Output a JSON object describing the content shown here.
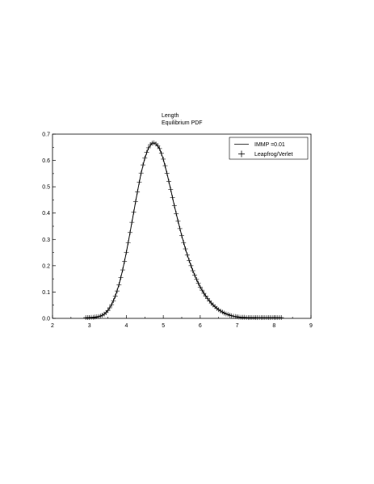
{
  "chart_data": {
    "type": "line",
    "title_lines": [
      "Length",
      "Equilibrium PDF"
    ],
    "xlabel": "",
    "ylabel": "",
    "xlim": [
      2,
      9
    ],
    "ylim": [
      0,
      0.7
    ],
    "xticks": [
      2,
      3,
      4,
      5,
      6,
      7,
      8,
      9
    ],
    "yticks": [
      0.0,
      0.1,
      0.2,
      0.3,
      0.4,
      0.5,
      0.6,
      0.7
    ],
    "xtick_labels": [
      "2",
      "3",
      "4",
      "5",
      "6",
      "7",
      "8",
      "9"
    ],
    "ytick_labels": [
      "0.0",
      "0.1",
      "0.2",
      "0.3",
      "0.4",
      "0.5",
      "0.6",
      "0.7"
    ],
    "grid": false,
    "legend_position": "top-right",
    "series": [
      {
        "name": "IMMP =0.01",
        "style": "line",
        "color": "#000000",
        "x": [
          2.9,
          3.0,
          3.1,
          3.2,
          3.3,
          3.4,
          3.5,
          3.6,
          3.7,
          3.8,
          3.9,
          4.0,
          4.1,
          4.2,
          4.3,
          4.4,
          4.5,
          4.6,
          4.7,
          4.8,
          4.9,
          5.0,
          5.1,
          5.2,
          5.3,
          5.4,
          5.5,
          5.6,
          5.7,
          5.8,
          5.9,
          6.0,
          6.1,
          6.2,
          6.3,
          6.4,
          6.5,
          6.6,
          6.7,
          6.8,
          6.9,
          7.0,
          7.1,
          7.2,
          7.3,
          7.4,
          7.5
        ],
        "y": [
          0.0,
          0.001,
          0.002,
          0.004,
          0.008,
          0.016,
          0.03,
          0.052,
          0.084,
          0.128,
          0.184,
          0.251,
          0.326,
          0.404,
          0.481,
          0.552,
          0.609,
          0.648,
          0.666,
          0.663,
          0.645,
          0.605,
          0.551,
          0.49,
          0.428,
          0.369,
          0.314,
          0.264,
          0.22,
          0.181,
          0.148,
          0.119,
          0.095,
          0.075,
          0.058,
          0.044,
          0.033,
          0.024,
          0.017,
          0.012,
          0.008,
          0.005,
          0.003,
          0.002,
          0.001,
          0.001,
          0.0
        ]
      },
      {
        "name": "Leapfrog/Verlet",
        "style": "marker-plus",
        "color": "#000000",
        "x": [
          2.9,
          2.95,
          3.0,
          3.05,
          3.1,
          3.15,
          3.2,
          3.25,
          3.3,
          3.35,
          3.4,
          3.45,
          3.5,
          3.55,
          3.6,
          3.65,
          3.7,
          3.75,
          3.8,
          3.85,
          3.9,
          3.95,
          4.0,
          4.05,
          4.1,
          4.15,
          4.2,
          4.25,
          4.3,
          4.35,
          4.4,
          4.45,
          4.5,
          4.55,
          4.6,
          4.65,
          4.7,
          4.75,
          4.8,
          4.85,
          4.9,
          4.95,
          5.0,
          5.05,
          5.1,
          5.15,
          5.2,
          5.25,
          5.3,
          5.35,
          5.4,
          5.45,
          5.5,
          5.55,
          5.6,
          5.65,
          5.7,
          5.75,
          5.8,
          5.85,
          5.9,
          5.95,
          6.0,
          6.05,
          6.1,
          6.15,
          6.2,
          6.25,
          6.3,
          6.35,
          6.4,
          6.45,
          6.5,
          6.55,
          6.6,
          6.65,
          6.7,
          6.75,
          6.8,
          6.85,
          6.9,
          6.95,
          7.0,
          7.05,
          7.1,
          7.15,
          7.2,
          7.25,
          7.3,
          7.35,
          7.4,
          7.45,
          7.5,
          7.55,
          7.6,
          7.65,
          7.7,
          7.75,
          7.8,
          7.85,
          7.9,
          7.95,
          8.0,
          8.05,
          8.1,
          8.15,
          8.2
        ],
        "y": [
          0.003,
          0.003,
          0.003,
          0.004,
          0.004,
          0.005,
          0.006,
          0.007,
          0.009,
          0.012,
          0.016,
          0.022,
          0.03,
          0.04,
          0.052,
          0.067,
          0.084,
          0.104,
          0.128,
          0.155,
          0.184,
          0.217,
          0.251,
          0.288,
          0.326,
          0.365,
          0.404,
          0.443,
          0.481,
          0.517,
          0.552,
          0.583,
          0.609,
          0.631,
          0.648,
          0.66,
          0.666,
          0.667,
          0.663,
          0.656,
          0.645,
          0.627,
          0.605,
          0.58,
          0.551,
          0.521,
          0.49,
          0.459,
          0.428,
          0.398,
          0.369,
          0.341,
          0.314,
          0.288,
          0.264,
          0.241,
          0.22,
          0.2,
          0.181,
          0.164,
          0.148,
          0.133,
          0.119,
          0.107,
          0.095,
          0.085,
          0.075,
          0.066,
          0.058,
          0.051,
          0.044,
          0.038,
          0.033,
          0.028,
          0.024,
          0.02,
          0.017,
          0.015,
          0.012,
          0.01,
          0.008,
          0.007,
          0.006,
          0.005,
          0.004,
          0.004,
          0.004,
          0.003,
          0.003,
          0.003,
          0.003,
          0.003,
          0.003,
          0.003,
          0.003,
          0.003,
          0.003,
          0.003,
          0.003,
          0.003,
          0.003,
          0.003,
          0.003,
          0.003,
          0.003,
          0.003,
          0.003
        ]
      }
    ]
  }
}
